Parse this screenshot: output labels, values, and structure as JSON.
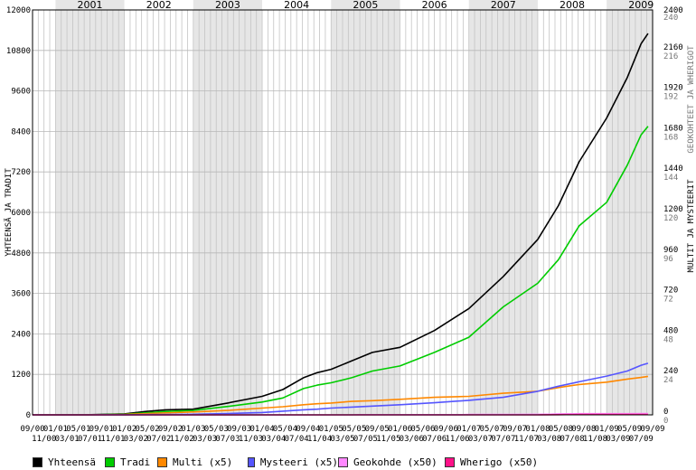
{
  "chart_data": {
    "type": "line",
    "years": [
      "2001",
      "2002",
      "2003",
      "2004",
      "2005",
      "2006",
      "2007",
      "2008",
      "2009"
    ],
    "x_tick_labels_top": [
      "09/00",
      "01/01",
      "05/01",
      "09/01",
      "01/02",
      "05/02",
      "09/02",
      "01/03",
      "05/03",
      "09/03",
      "01/04",
      "05/04",
      "09/04",
      "01/05",
      "05/05",
      "09/05",
      "01/06",
      "05/06",
      "09/06",
      "01/07",
      "05/07",
      "09/07",
      "01/08",
      "05/08",
      "09/08",
      "01/09",
      "05/09",
      "09/09"
    ],
    "x_tick_labels_bottom": [
      "11/00",
      "03/01",
      "07/01",
      "11/01",
      "03/02",
      "07/02",
      "11/02",
      "03/03",
      "07/03",
      "11/03",
      "03/04",
      "07/04",
      "11/04",
      "03/05",
      "07/05",
      "11/05",
      "03/06",
      "07/06",
      "11/06",
      "03/07",
      "07/07",
      "11/07",
      "03/08",
      "07/08",
      "11/08",
      "03/09",
      "07/09"
    ],
    "x_range": [
      2000.667,
      2009.667
    ],
    "y_left": {
      "label": "YHTEENSÄ JA TRADIT",
      "range": [
        0,
        12000
      ],
      "ticks": [
        "0",
        "1200",
        "2400",
        "3600",
        "4800",
        "6000",
        "7200",
        "8400",
        "9600",
        "10800",
        "12000"
      ]
    },
    "y_right_black": {
      "label": "MULTIT JA MYSTEERIT",
      "range": [
        0,
        2400
      ],
      "ticks": [
        "0",
        "240",
        "480",
        "720",
        "960",
        "1200",
        "1440",
        "1680",
        "1920",
        "2160",
        "2400"
      ]
    },
    "y_right_grey": {
      "label": "GEOKOHTEET JA WHERIGOT",
      "range": [
        0,
        240
      ],
      "ticks": [
        "0",
        "24",
        "48",
        "72",
        "96",
        "120",
        "144",
        "168",
        "192",
        "216",
        "240"
      ]
    },
    "grid": true,
    "legend_placement": "bottom",
    "series": [
      {
        "name": "Yhteensä",
        "color": "#000000",
        "x": [
          2000.67,
          2001.5,
          2002.0,
          2002.3,
          2002.6,
          2003.0,
          2003.5,
          2004.0,
          2004.3,
          2004.6,
          2004.8,
          2005.0,
          2005.3,
          2005.6,
          2006.0,
          2006.5,
          2007.0,
          2007.5,
          2008.0,
          2008.3,
          2008.6,
          2009.0,
          2009.3,
          2009.5,
          2009.6
        ],
        "y": [
          0,
          5,
          30,
          100,
          150,
          170,
          350,
          550,
          750,
          1100,
          1250,
          1350,
          1600,
          1850,
          2000,
          2500,
          3150,
          4100,
          5200,
          6200,
          7500,
          8800,
          10000,
          11000,
          11300
        ]
      },
      {
        "name": "Tradi",
        "color": "#00cc00",
        "x": [
          2000.67,
          2001.5,
          2002.0,
          2002.3,
          2002.6,
          2003.0,
          2003.5,
          2004.0,
          2004.3,
          2004.6,
          2004.8,
          2005.0,
          2005.3,
          2005.6,
          2006.0,
          2006.5,
          2007.0,
          2007.5,
          2008.0,
          2008.3,
          2008.6,
          2009.0,
          2009.3,
          2009.5,
          2009.6
        ],
        "y": [
          0,
          4,
          20,
          60,
          100,
          130,
          250,
          380,
          500,
          780,
          880,
          950,
          1100,
          1300,
          1450,
          1850,
          2300,
          3200,
          3900,
          4600,
          5600,
          6300,
          7400,
          8300,
          8550
        ]
      },
      {
        "name": "Multi (x5)",
        "color": "#ff8800",
        "x": [
          2000.67,
          2001.5,
          2002.0,
          2002.3,
          2002.6,
          2003.0,
          2003.5,
          2004.0,
          2004.3,
          2004.6,
          2004.8,
          2005.0,
          2005.3,
          2005.6,
          2006.0,
          2006.5,
          2007.0,
          2007.5,
          2008.0,
          2008.3,
          2008.6,
          2009.0,
          2009.3,
          2009.5,
          2009.6
        ],
        "y": [
          0,
          1,
          12,
          35,
          60,
          85,
          130,
          200,
          240,
          300,
          330,
          350,
          400,
          420,
          460,
          520,
          550,
          640,
          700,
          810,
          900,
          970,
          1060,
          1110,
          1140
        ]
      },
      {
        "name": "Mysteeri (x5)",
        "color": "#5555ff",
        "x": [
          2000.67,
          2001.5,
          2002.0,
          2002.3,
          2002.6,
          2003.0,
          2003.5,
          2004.0,
          2004.3,
          2004.6,
          2004.8,
          2005.0,
          2005.3,
          2005.6,
          2006.0,
          2006.5,
          2007.0,
          2007.5,
          2008.0,
          2008.3,
          2008.6,
          2009.0,
          2009.3,
          2009.5,
          2009.6
        ],
        "y": [
          0,
          0,
          3,
          8,
          14,
          20,
          40,
          70,
          110,
          150,
          170,
          200,
          230,
          260,
          300,
          360,
          430,
          520,
          700,
          850,
          980,
          1150,
          1300,
          1470,
          1530
        ]
      },
      {
        "name": "Geokohde (x50)",
        "color": "#ff88ff",
        "x": [
          2000.67,
          2004.6,
          2005.0,
          2005.3,
          2005.4,
          2005.8,
          2006.0,
          2006.5,
          2006.9,
          2007.0,
          2007.3,
          2007.6,
          2007.9,
          2008.0,
          2008.2,
          2008.3,
          2008.6,
          2008.8,
          2009.0,
          2009.3,
          2009.5,
          2009.6
        ],
        "y": [
          0,
          0,
          0.5,
          1,
          5,
          6,
          6,
          6,
          6.5,
          12,
          12.5,
          14,
          16,
          17,
          22,
          29,
          34,
          35.5,
          35,
          35.5,
          38,
          38
        ]
      },
      {
        "name": "Wherigo (x50)",
        "color": "#ff1188",
        "x": [
          2000.67,
          2008.0,
          2008.05,
          2008.3,
          2008.4,
          2008.6,
          2009.0,
          2009.3,
          2009.5,
          2009.6
        ],
        "y": [
          0,
          0,
          2,
          6,
          9,
          9.5,
          9.5,
          9.5,
          10,
          10
        ]
      }
    ]
  }
}
